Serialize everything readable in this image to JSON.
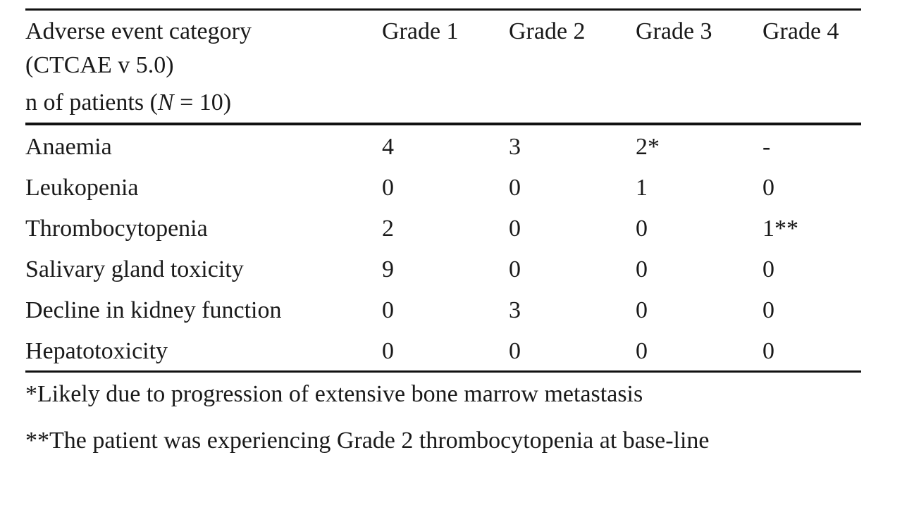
{
  "table": {
    "caption_fragment": "",
    "header": {
      "category_line1": "Adverse event category",
      "category_line2": "(CTCAE v 5.0)",
      "category_line3_pre": "n of patients (",
      "category_line3_var": "N",
      "category_line3_post": " = 10)",
      "grades": [
        "Grade 1",
        "Grade 2",
        "Grade 3",
        "Grade 4"
      ]
    },
    "rows": [
      {
        "category": "Anaemia",
        "values": [
          "4",
          "3",
          "2*",
          "-"
        ]
      },
      {
        "category": "Leukopenia",
        "values": [
          "0",
          "0",
          "1",
          "0"
        ]
      },
      {
        "category": "Thrombocytopenia",
        "values": [
          "2",
          "0",
          "0",
          "1**"
        ]
      },
      {
        "category": "Salivary gland toxicity",
        "values": [
          "9",
          "0",
          "0",
          "0"
        ]
      },
      {
        "category": "Decline in kidney function",
        "values": [
          "0",
          "3",
          "0",
          "0"
        ]
      },
      {
        "category": "Hepatotoxicity",
        "values": [
          "0",
          "0",
          "0",
          "0"
        ]
      }
    ]
  },
  "footnotes": [
    "*Likely due to progression of extensive bone marrow metastasis",
    "**The patient was experiencing Grade 2 thrombocytopenia at base-line"
  ]
}
